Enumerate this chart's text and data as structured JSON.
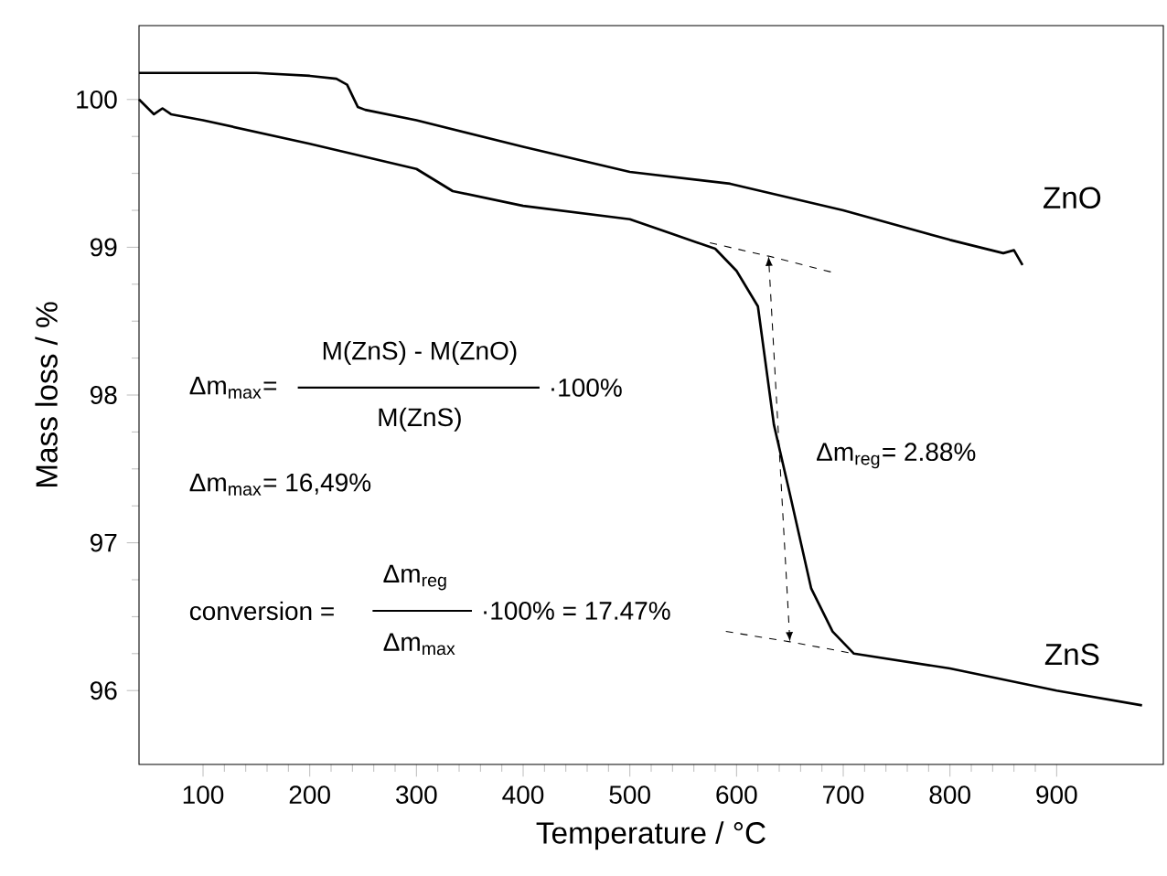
{
  "chart_data": {
    "type": "line",
    "xlabel": "Temperature / °C",
    "ylabel": "Mass loss / %",
    "xlim": [
      40,
      1000
    ],
    "ylim": [
      95.5,
      100.5
    ],
    "xticks": [
      100,
      200,
      300,
      400,
      500,
      600,
      700,
      800,
      900
    ],
    "yticks": [
      96,
      97,
      98,
      99,
      100
    ],
    "grid": false,
    "marker": "none",
    "series": [
      {
        "name": "ZnO",
        "color": "#000000",
        "line_style": "solid",
        "x": [
          40,
          150,
          200,
          225,
          235,
          245,
          252,
          300,
          400,
          500,
          594,
          700,
          800,
          850,
          860,
          868
        ],
        "values": [
          100.18,
          100.18,
          100.16,
          100.14,
          100.1,
          99.95,
          99.93,
          99.86,
          99.68,
          99.51,
          99.43,
          99.25,
          99.05,
          98.96,
          98.98,
          98.88
        ]
      },
      {
        "name": "ZnS",
        "color": "#000000",
        "line_style": "solid",
        "x": [
          40,
          54,
          62,
          70,
          100,
          200,
          300,
          334,
          400,
          500,
          580,
          600,
          620,
          635,
          650,
          670,
          690,
          710,
          800,
          900,
          980
        ],
        "values": [
          100.0,
          99.9,
          99.94,
          99.9,
          99.86,
          99.7,
          99.53,
          99.38,
          99.28,
          99.19,
          98.99,
          98.84,
          98.6,
          97.8,
          97.33,
          96.69,
          96.4,
          96.25,
          96.15,
          96.0,
          95.9
        ]
      },
      {
        "color": "#000000",
        "line_style": "dashed",
        "x": [
          575,
          630,
          690
        ],
        "values": [
          99.03,
          98.94,
          98.83
        ]
      },
      {
        "color": "#000000",
        "line_style": "dashed",
        "x": [
          590,
          650,
          710
        ],
        "values": [
          96.4,
          96.33,
          96.25
        ]
      }
    ],
    "annotations": [
      "Δm$_{max}$=",
      "M(ZnS) - M(ZnO)",
      "M(ZnS)",
      "·100%",
      "Δm$_{max}$= 16,49%",
      "Δm$_{reg}$= 2.88%",
      "conversion =",
      "Δm$_{reg}$",
      "Δm$_{max}$",
      "·100% = 17.47%"
    ]
  }
}
